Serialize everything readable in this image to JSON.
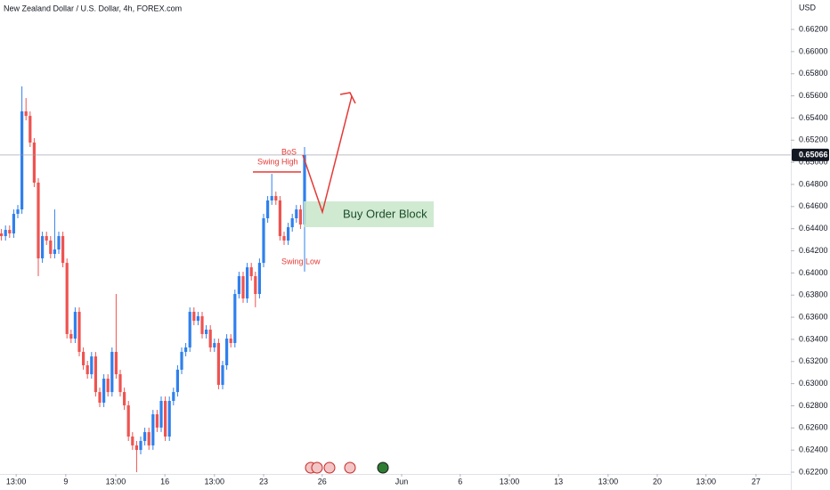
{
  "chart_data": {
    "type": "candlestick",
    "title": "New Zealand Dollar / U.S. Dollar, 4h, FOREX.com",
    "currency": "USD",
    "up_color": "#2f80ed",
    "down_color": "#ef5350",
    "x": [
      0,
      1,
      2,
      3,
      4,
      5,
      6,
      7,
      8,
      9,
      10,
      11,
      12,
      13,
      14,
      15,
      16,
      17,
      18,
      19,
      20,
      21,
      22,
      23,
      24,
      25,
      26,
      27,
      28,
      29,
      30,
      31,
      32,
      33,
      34,
      35,
      36,
      37,
      38,
      39,
      40,
      41,
      42,
      43,
      44,
      45,
      46,
      47,
      48,
      49,
      50,
      51,
      52,
      53,
      54,
      55,
      56,
      57,
      58,
      59,
      60,
      61,
      62,
      63,
      64,
      65,
      66,
      67,
      68,
      69,
      70,
      71,
      72,
      73,
      74
    ],
    "open": [
      0.64357,
      0.64333,
      0.64389,
      0.64357,
      0.64534,
      0.64574,
      0.6546,
      0.65419,
      0.65178,
      0.64816,
      0.64132,
      0.64333,
      0.64293,
      0.64172,
      0.64212,
      0.64333,
      0.64091,
      0.63448,
      0.63407,
      0.63649,
      0.63287,
      0.63166,
      0.63085,
      0.63246,
      0.62924,
      0.62828,
      0.63045,
      0.62924,
      0.63287,
      0.63085,
      0.62924,
      0.62804,
      0.62522,
      0.62442,
      0.62401,
      0.62482,
      0.62562,
      0.62442,
      0.62723,
      0.62603,
      0.62844,
      0.62522,
      0.62844,
      0.62924,
      0.63126,
      0.63287,
      0.63327,
      0.63649,
      0.63568,
      0.63609,
      0.63448,
      0.63488,
      0.63327,
      0.63367,
      0.62989,
      0.63166,
      0.63407,
      0.63367,
      0.6381,
      0.63971,
      0.6377,
      0.64051,
      0.63971,
      0.6381,
      0.64091,
      0.64494,
      0.64655,
      0.64695,
      0.64655,
      0.64333,
      0.64293,
      0.64413,
      0.64494,
      0.64574,
      0.64438
    ],
    "high": [
      0.64397,
      0.64429,
      0.64429,
      0.64574,
      0.64614,
      0.65685,
      0.6558,
      0.65459,
      0.65218,
      0.64856,
      0.64373,
      0.64373,
      0.64333,
      0.64574,
      0.64373,
      0.64373,
      0.64131,
      0.63488,
      0.63689,
      0.63689,
      0.63327,
      0.63206,
      0.63286,
      0.63286,
      0.62964,
      0.63085,
      0.63085,
      0.63327,
      0.6381,
      0.63125,
      0.62964,
      0.62844,
      0.62562,
      0.62482,
      0.62522,
      0.62602,
      0.62602,
      0.62763,
      0.62763,
      0.62884,
      0.62884,
      0.62884,
      0.62964,
      0.63166,
      0.63327,
      0.63367,
      0.63689,
      0.63689,
      0.63649,
      0.63649,
      0.63528,
      0.63528,
      0.63407,
      0.63407,
      0.63206,
      0.63447,
      0.63447,
      0.6385,
      0.64011,
      0.64011,
      0.64091,
      0.64091,
      0.64011,
      0.64131,
      0.64534,
      0.64695,
      0.64896,
      0.64735,
      0.64695,
      0.64373,
      0.64453,
      0.64534,
      0.64614,
      0.64614,
      0.65138
    ],
    "low": [
      0.64293,
      0.64293,
      0.64317,
      0.64317,
      0.64494,
      0.64534,
      0.65379,
      0.65138,
      0.64776,
      0.63971,
      0.64092,
      0.64253,
      0.64132,
      0.64132,
      0.64172,
      0.64051,
      0.63408,
      0.63367,
      0.63367,
      0.63247,
      0.63126,
      0.63045,
      0.63045,
      0.62884,
      0.62788,
      0.62788,
      0.62884,
      0.62884,
      0.63045,
      0.62884,
      0.62764,
      0.62482,
      0.62402,
      0.622,
      0.62361,
      0.62442,
      0.62402,
      0.62402,
      0.62563,
      0.62563,
      0.62482,
      0.62482,
      0.62804,
      0.62884,
      0.63086,
      0.63247,
      0.63287,
      0.63528,
      0.63528,
      0.63408,
      0.63408,
      0.63287,
      0.63287,
      0.62949,
      0.62949,
      0.63126,
      0.63327,
      0.63327,
      0.6377,
      0.6373,
      0.6373,
      0.63931,
      0.6369,
      0.6377,
      0.64051,
      0.64454,
      0.64615,
      0.64615,
      0.64293,
      0.64253,
      0.64253,
      0.64373,
      0.64454,
      0.64398,
      0.64012
    ],
    "close": [
      0.64333,
      0.64389,
      0.64357,
      0.64534,
      0.64574,
      0.6546,
      0.65419,
      0.65178,
      0.64816,
      0.64132,
      0.64333,
      0.64293,
      0.64172,
      0.64212,
      0.64333,
      0.64091,
      0.63448,
      0.63407,
      0.63649,
      0.63287,
      0.63166,
      0.63085,
      0.63246,
      0.62924,
      0.62828,
      0.63045,
      0.62924,
      0.63287,
      0.63085,
      0.62924,
      0.62804,
      0.62522,
      0.62442,
      0.62401,
      0.62482,
      0.62562,
      0.62442,
      0.62723,
      0.62603,
      0.62844,
      0.62522,
      0.62844,
      0.62924,
      0.63126,
      0.63287,
      0.63327,
      0.63649,
      0.63568,
      0.63609,
      0.63448,
      0.63488,
      0.63327,
      0.63367,
      0.62989,
      0.63166,
      0.63407,
      0.63367,
      0.6381,
      0.63971,
      0.6377,
      0.64051,
      0.63971,
      0.6381,
      0.64091,
      0.64494,
      0.64655,
      0.64695,
      0.64655,
      0.64333,
      0.64293,
      0.64413,
      0.64494,
      0.64574,
      0.64438,
      0.65066
    ],
    "current_price": 0.65066,
    "xlim": [
      -0.35,
      192.7
    ],
    "xticks": [
      {
        "value": 3.6,
        "label": "13:00"
      },
      {
        "value": 15.7,
        "label": "9"
      },
      {
        "value": 27.9,
        "label": "13:00"
      },
      {
        "value": 39.9,
        "label": "16"
      },
      {
        "value": 52.0,
        "label": "13:00"
      },
      {
        "value": 64.0,
        "label": "23"
      },
      {
        "value": 78.3,
        "label": "26"
      },
      {
        "value": 97.7,
        "label": "Jun"
      },
      {
        "value": 112.0,
        "label": "6"
      },
      {
        "value": 124.0,
        "label": "13:00"
      },
      {
        "value": 136.0,
        "label": "13"
      },
      {
        "value": 148.1,
        "label": "13:00"
      },
      {
        "value": 160.1,
        "label": "20"
      },
      {
        "value": 172.0,
        "label": "13:00"
      },
      {
        "value": 184.2,
        "label": "27"
      }
    ],
    "ylim": [
      0.62184,
      0.66466
    ],
    "yticks": [
      {
        "value": 0.622,
        "label": "0.62200"
      },
      {
        "value": 0.624,
        "label": "0.62400"
      },
      {
        "value": 0.626,
        "label": "0.62600"
      },
      {
        "value": 0.628,
        "label": "0.62800"
      },
      {
        "value": 0.63,
        "label": "0.63000"
      },
      {
        "value": 0.632,
        "label": "0.63200"
      },
      {
        "value": 0.634,
        "label": "0.63400"
      },
      {
        "value": 0.636,
        "label": "0.63600"
      },
      {
        "value": 0.638,
        "label": "0.63800"
      },
      {
        "value": 0.64,
        "label": "0.64000"
      },
      {
        "value": 0.642,
        "label": "0.64200"
      },
      {
        "value": 0.644,
        "label": "0.64400"
      },
      {
        "value": 0.646,
        "label": "0.64600"
      },
      {
        "value": 0.648,
        "label": "0.64800"
      },
      {
        "value": 0.65,
        "label": "0.65000"
      },
      {
        "value": 0.652,
        "label": "0.65200"
      },
      {
        "value": 0.654,
        "label": "0.65400"
      },
      {
        "value": 0.656,
        "label": "0.65600"
      },
      {
        "value": 0.658,
        "label": "0.65800"
      },
      {
        "value": 0.66,
        "label": "0.66000"
      },
      {
        "value": 0.662,
        "label": "0.66200"
      }
    ],
    "grid": false,
    "annotations": {
      "bos": "BoS",
      "swing_high": "Swing High",
      "swing_low": "Swing Low",
      "order_block": "Buy Order Block"
    }
  }
}
